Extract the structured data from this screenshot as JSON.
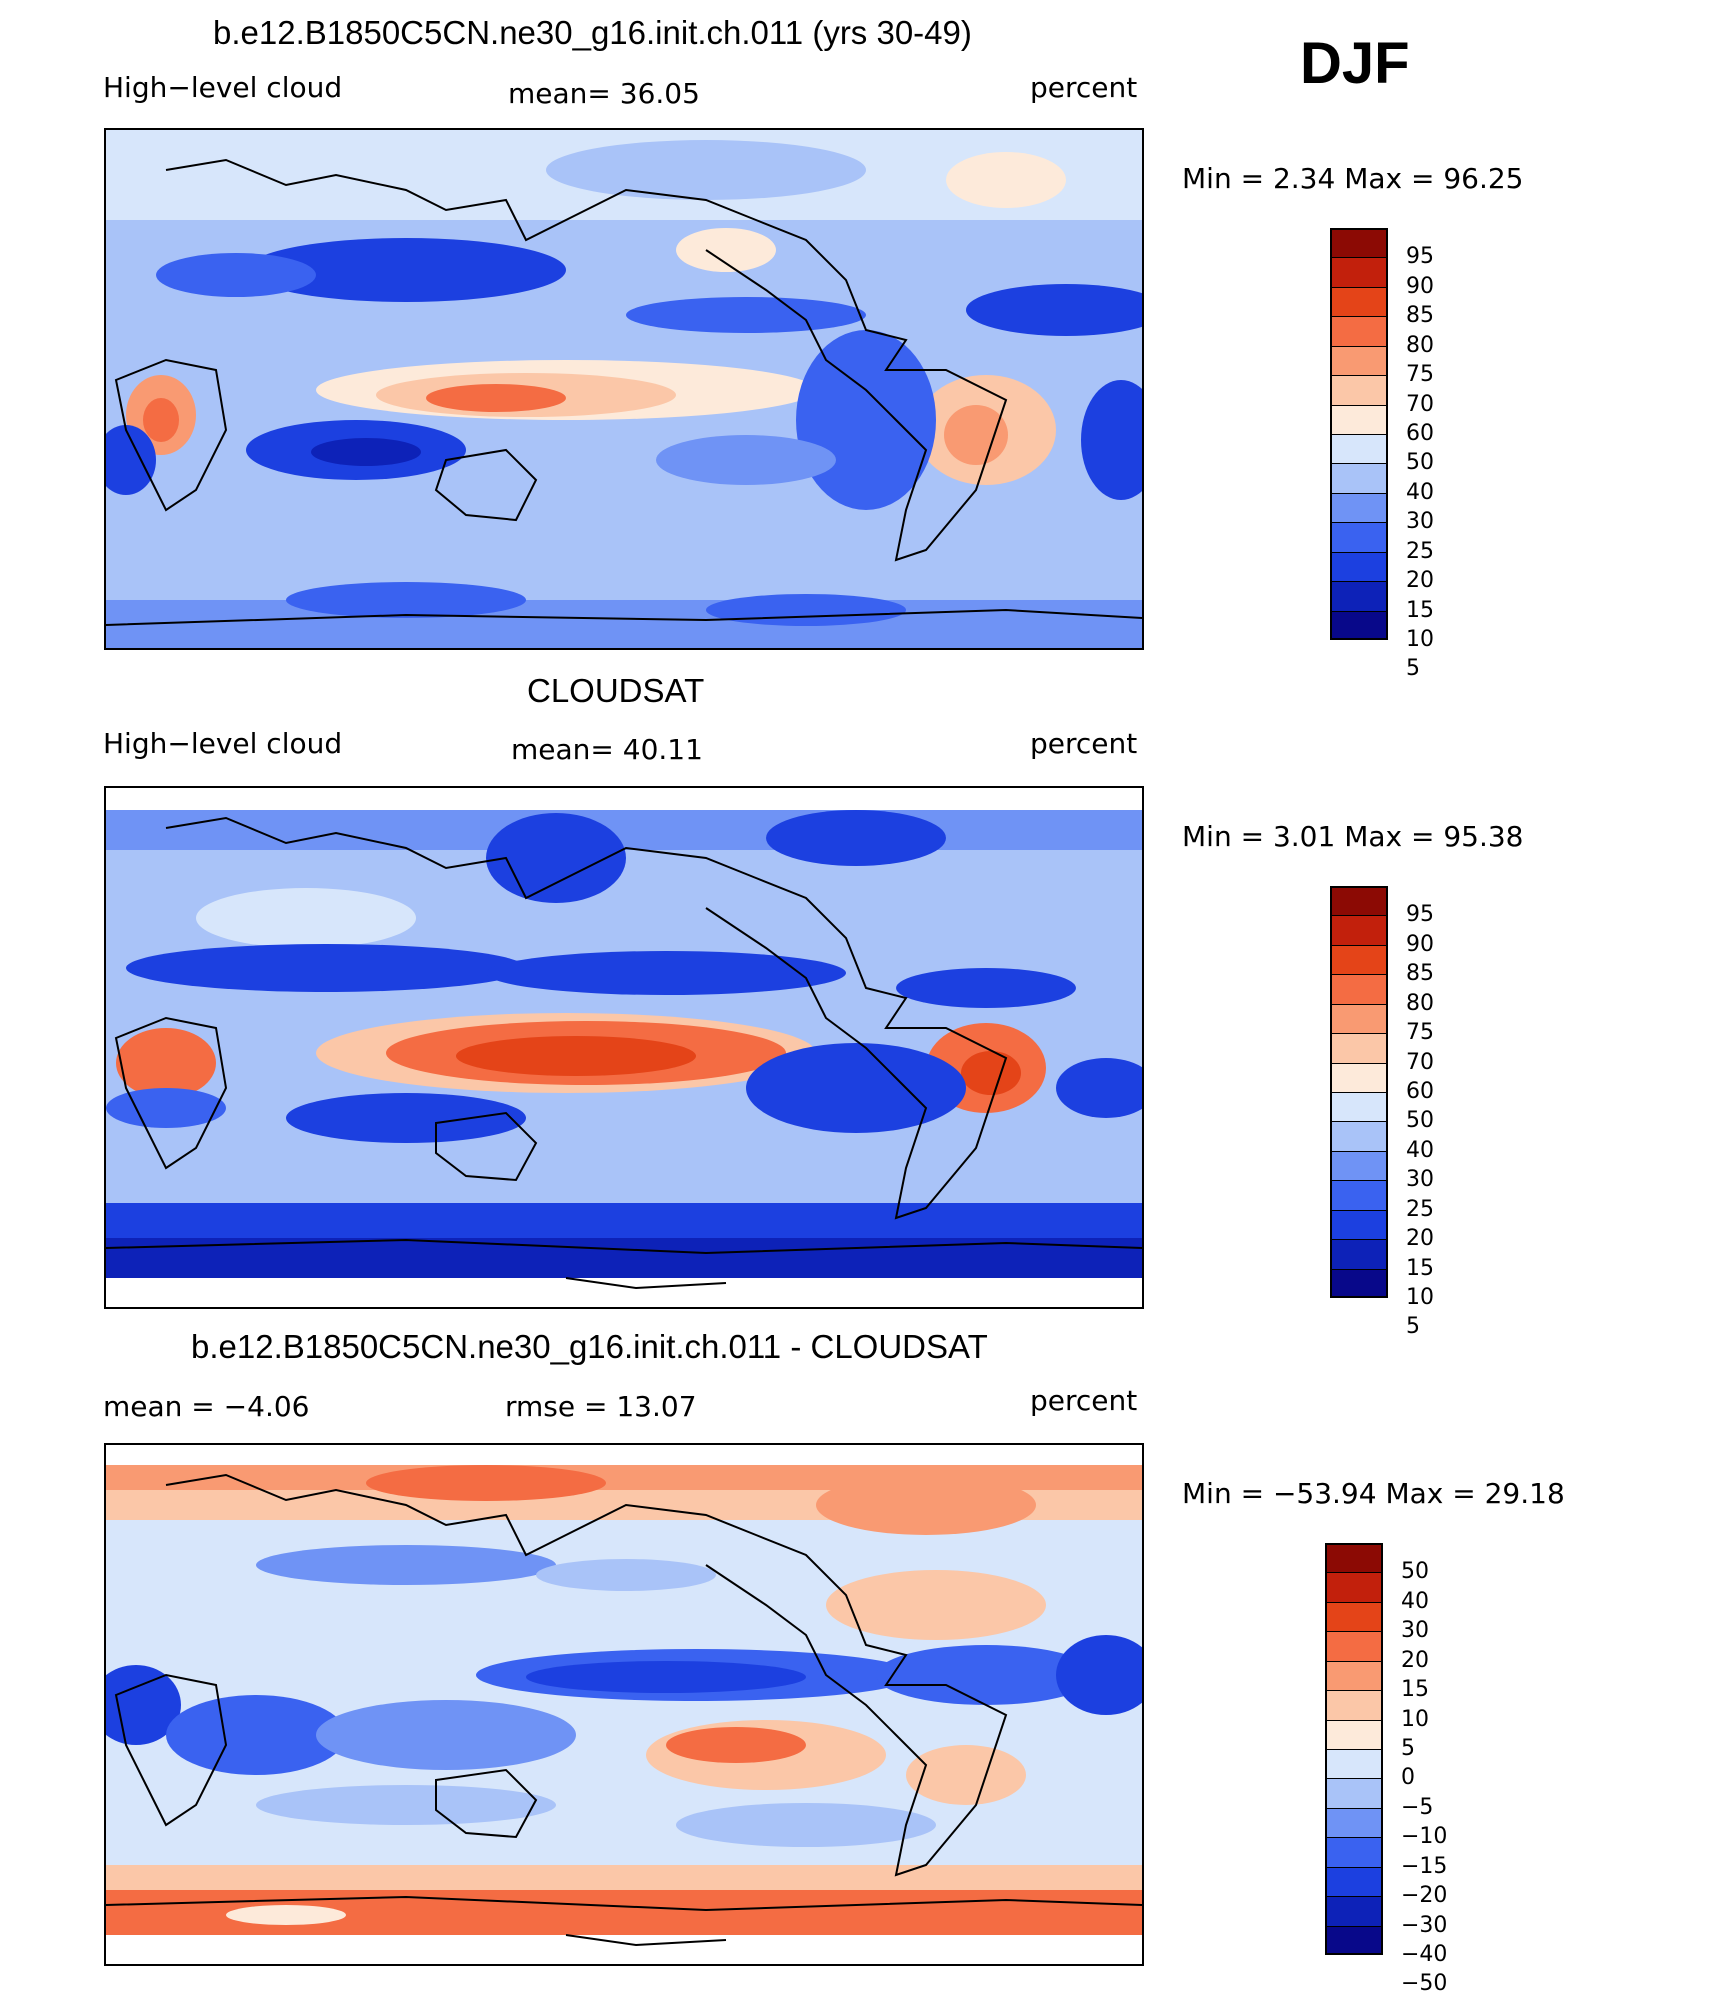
{
  "season": "DJF",
  "palette": [
    "#08088a",
    "#0d22b8",
    "#1c40e0",
    "#3a62f0",
    "#6f93f5",
    "#a9c3f8",
    "#d7e6fb",
    "#fdeada",
    "#fbc7a8",
    "#f99a72",
    "#f46c43",
    "#e44418",
    "#c2200c",
    "#8c0a04"
  ],
  "panels": [
    {
      "id": "model",
      "title": "b.e12.B1850C5CN.ne30_g16.init.ch.011 (yrs 30-49)",
      "left_label": "High−level cloud",
      "center_label": "mean=   36.05",
      "right_label": "percent",
      "min_max": "Min  =      2.34  Max  =     96.25",
      "colorbar_ticks": [
        "95",
        "90",
        "85",
        "80",
        "75",
        "70",
        "60",
        "50",
        "40",
        "30",
        "25",
        "20",
        "15",
        "10",
        "5"
      ]
    },
    {
      "id": "obs",
      "title": "CLOUDSAT",
      "left_label": "High−level cloud",
      "center_label": "mean=   40.11",
      "right_label": "percent",
      "min_max": "Min  =      3.01  Max  =     95.38",
      "colorbar_ticks": [
        "95",
        "90",
        "85",
        "80",
        "75",
        "70",
        "60",
        "50",
        "40",
        "30",
        "25",
        "20",
        "15",
        "10",
        "5"
      ]
    },
    {
      "id": "diff",
      "title": "b.e12.B1850C5CN.ne30_g16.init.ch.011 - CLOUDSAT",
      "left_label": "mean  =    −4.06",
      "center_label": "rmse  =    13.07",
      "right_label": "percent",
      "min_max": "Min  =  −53.94  Max  =    29.18",
      "colorbar_ticks": [
        "50",
        "40",
        "30",
        "20",
        "15",
        "10",
        "5",
        "0",
        "−5",
        "−10",
        "−15",
        "−20",
        "−30",
        "−40",
        "−50"
      ]
    }
  ]
}
